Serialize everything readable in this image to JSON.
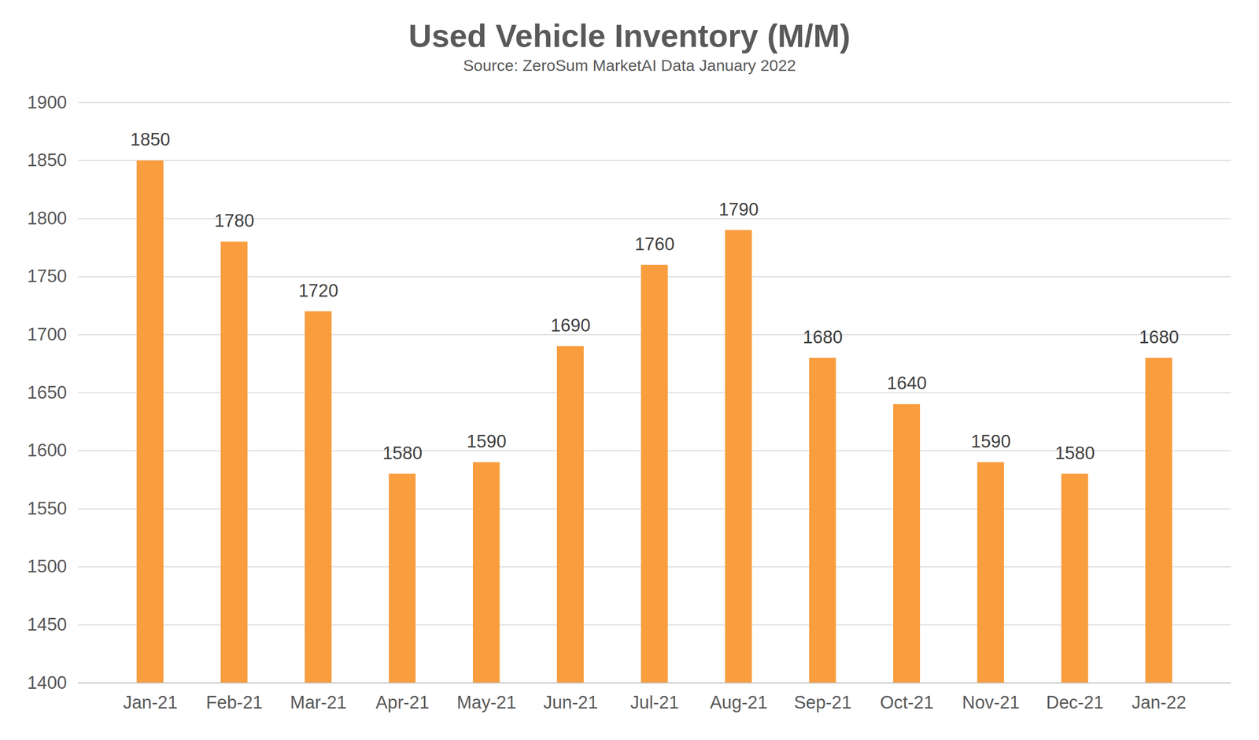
{
  "chart_data": {
    "type": "bar",
    "title": "Used Vehicle Inventory (M/M)",
    "subtitle": "Source: ZeroSum MarketAI Data January 2022",
    "categories": [
      "Jan-21",
      "Feb-21",
      "Mar-21",
      "Apr-21",
      "May-21",
      "Jun-21",
      "Jul-21",
      "Aug-21",
      "Sep-21",
      "Oct-21",
      "Nov-21",
      "Dec-21",
      "Jan-22"
    ],
    "values": [
      1850,
      1780,
      1720,
      1580,
      1590,
      1690,
      1760,
      1790,
      1680,
      1640,
      1590,
      1580,
      1680
    ],
    "color": "#f99d3f",
    "ylim": [
      1400,
      1900
    ],
    "yticks": [
      1400,
      1450,
      1500,
      1550,
      1600,
      1650,
      1700,
      1750,
      1800,
      1850,
      1900
    ],
    "grid": true,
    "data_labels": true
  }
}
